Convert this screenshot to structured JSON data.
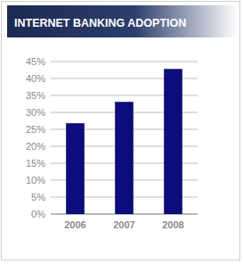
{
  "chart_data": {
    "type": "bar",
    "title": "INTERNET BANKING ADOPTION",
    "categories": [
      "2006",
      "2007",
      "2008"
    ],
    "values": [
      26.7,
      33,
      42.7
    ],
    "color": "#0c0c7c",
    "ylim": [
      0,
      45
    ],
    "yticks": [
      {
        "value": 0,
        "label": "0%"
      },
      {
        "value": 5,
        "label": "5%"
      },
      {
        "value": 10,
        "label": "10%"
      },
      {
        "value": 15,
        "label": "15%"
      },
      {
        "value": 20,
        "label": "20%"
      },
      {
        "value": 25,
        "label": "25%"
      },
      {
        "value": 30,
        "label": "30%"
      },
      {
        "value": 35,
        "label": "35%"
      },
      {
        "value": 40,
        "label": "40%"
      },
      {
        "value": 45,
        "label": "45%"
      }
    ],
    "grid": true
  }
}
